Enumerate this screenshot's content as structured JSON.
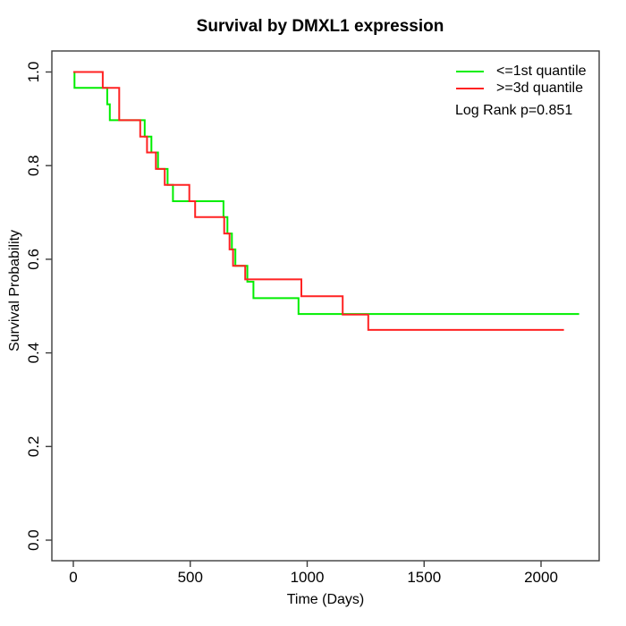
{
  "chart": {
    "title": "Survival by DMXL1 expression",
    "xlabel": "Time (Days)",
    "ylabel": "Survival Probability"
  },
  "legend": {
    "items": [
      {
        "label": "<=1st quantile",
        "color": "#00ee00"
      },
      {
        "label": ">=3d quantile",
        "color": "#ff2222"
      }
    ],
    "note": "Log Rank p=0.851"
  },
  "colors": {
    "low_expression_curve": "#00ee00",
    "high_expression_curve": "#ff2222",
    "axis": "#3d3d3d",
    "text": "#000000"
  },
  "chart_data": {
    "type": "line",
    "subtype": "kaplan-meier-step",
    "title": "Survival by DMXL1 expression",
    "xlabel": "Time (Days)",
    "ylabel": "Survival Probability",
    "xlim": [
      0,
      2250
    ],
    "ylim": [
      0,
      1.0
    ],
    "grid": false,
    "legend_position": "top-right",
    "annotation": "Log Rank p=0.851",
    "x_ticks": [
      0,
      500,
      1000,
      1500,
      2000
    ],
    "x_tick_labels": [
      "0",
      "500",
      "1000",
      "1500",
      "2000"
    ],
    "y_ticks": [
      0.0,
      0.2,
      0.4,
      0.6,
      0.8,
      1.0
    ],
    "y_tick_labels": [
      "0.0",
      "0.2",
      "0.4",
      "0.6",
      "0.8",
      "1.0"
    ],
    "series": [
      {
        "name": "<=1st quantile",
        "color": "#00ee00",
        "start_value": 1.0,
        "drops": [
          [
            5,
            0.966
          ],
          [
            145,
            0.931
          ],
          [
            156,
            0.897
          ],
          [
            305,
            0.862
          ],
          [
            334,
            0.828
          ],
          [
            362,
            0.793
          ],
          [
            403,
            0.759
          ],
          [
            426,
            0.724
          ],
          [
            642,
            0.69
          ],
          [
            659,
            0.655
          ],
          [
            678,
            0.621
          ],
          [
            693,
            0.586
          ],
          [
            744,
            0.552
          ],
          [
            770,
            0.517
          ],
          [
            963,
            0.483
          ]
        ],
        "end_time": 2163
      },
      {
        "name": ">=3d quantile",
        "color": "#ff2222",
        "start_value": 1.0,
        "drops": [
          [
            126,
            0.966
          ],
          [
            196,
            0.897
          ],
          [
            286,
            0.862
          ],
          [
            315,
            0.828
          ],
          [
            353,
            0.793
          ],
          [
            391,
            0.759
          ],
          [
            496,
            0.724
          ],
          [
            521,
            0.69
          ],
          [
            645,
            0.655
          ],
          [
            668,
            0.621
          ],
          [
            683,
            0.586
          ],
          [
            735,
            0.557
          ],
          [
            975,
            0.521
          ],
          [
            1152,
            0.482
          ],
          [
            1261,
            0.449
          ]
        ],
        "end_time": 2098
      }
    ]
  }
}
